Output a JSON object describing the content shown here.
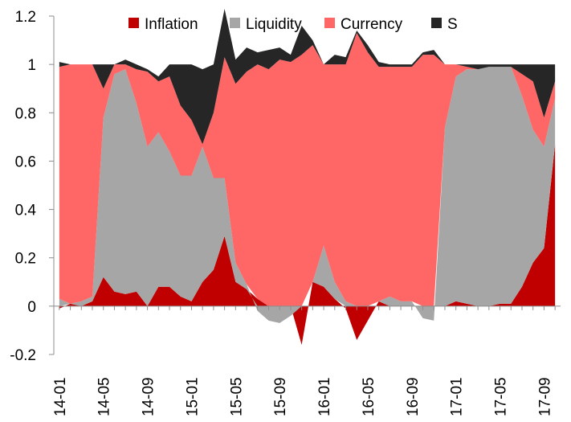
{
  "chart_data": {
    "type": "area",
    "stacked": true,
    "title": "",
    "xlabel": "",
    "ylabel": "",
    "ylim": [
      -0.2,
      1.2
    ],
    "yticks": [
      -0.2,
      0,
      0.2,
      0.4,
      0.6,
      0.8,
      1,
      1.2
    ],
    "ytick_labels": [
      "-0.2",
      "0",
      "0.2",
      "0.4",
      "0.6",
      "0.8",
      "1",
      "1.2"
    ],
    "xtick_labels": [
      "14-01",
      "14-05",
      "14-09",
      "15-01",
      "15-05",
      "15-09",
      "16-01",
      "16-05",
      "16-09",
      "17-01",
      "17-05",
      "17-09"
    ],
    "legend_position": "top",
    "grid": false,
    "x": [
      "14-01",
      "14-02",
      "14-03",
      "14-04",
      "14-05",
      "14-06",
      "14-07",
      "14-08",
      "14-09",
      "14-10",
      "14-11",
      "14-12",
      "15-01",
      "15-02",
      "15-03",
      "15-04",
      "15-05",
      "15-06",
      "15-07",
      "15-08",
      "15-09",
      "15-10",
      "15-11",
      "15-12",
      "16-01",
      "16-02",
      "16-03",
      "16-04",
      "16-05",
      "16-06",
      "16-07",
      "16-08",
      "16-09",
      "16-10",
      "16-11",
      "16-12",
      "17-01",
      "17-02",
      "17-03",
      "17-04",
      "17-05",
      "17-06",
      "17-07",
      "17-08",
      "17-09",
      "17-10"
    ],
    "series": [
      {
        "name": "Inflation",
        "color": "#c00000",
        "values": [
          -0.01,
          0.01,
          0.0,
          0.02,
          0.12,
          0.06,
          0.05,
          0.06,
          0.0,
          0.08,
          0.08,
          0.04,
          0.02,
          0.1,
          0.15,
          0.29,
          0.1,
          0.07,
          0.03,
          0.0,
          0.0,
          0.0,
          -0.16,
          0.1,
          0.08,
          0.03,
          -0.01,
          -0.14,
          -0.06,
          0.02,
          0.0,
          0.0,
          0.0,
          0.0,
          0.0,
          0.0,
          0.02,
          0.01,
          0.0,
          0.0,
          0.01,
          0.01,
          0.08,
          0.18,
          0.24,
          0.67
        ]
      },
      {
        "name": "Liquidity",
        "color": "#a6a6a6",
        "values": [
          0.03,
          0.0,
          0.02,
          0.02,
          0.66,
          0.9,
          0.93,
          0.78,
          0.66,
          0.64,
          0.56,
          0.5,
          0.52,
          0.56,
          0.38,
          0.24,
          0.08,
          0.02,
          -0.02,
          -0.06,
          -0.07,
          -0.04,
          0.0,
          0.0,
          0.17,
          0.07,
          0.02,
          0.0,
          0.0,
          0.0,
          0.04,
          0.02,
          0.02,
          -0.05,
          -0.06,
          0.74,
          0.93,
          0.97,
          0.98,
          0.99,
          0.98,
          0.98,
          0.79,
          0.55,
          0.42,
          0.19
        ]
      },
      {
        "name": "Currency",
        "color": "#ff6666",
        "values": [
          0.96,
          0.99,
          0.98,
          0.96,
          0.12,
          0.04,
          0.02,
          0.14,
          0.31,
          0.21,
          0.31,
          0.29,
          0.23,
          0.01,
          0.27,
          0.5,
          0.74,
          0.88,
          0.97,
          0.98,
          1.02,
          1.01,
          1.04,
          0.98,
          0.75,
          0.9,
          0.98,
          1.13,
          1.05,
          0.97,
          0.95,
          0.97,
          0.97,
          1.04,
          1.04,
          0.26,
          0.05,
          0.01,
          0.0,
          0.0,
          0.0,
          0.0,
          0.09,
          0.2,
          0.12,
          0.07
        ]
      },
      {
        "name": "S",
        "color": "#262626",
        "values": [
          0.02,
          0.0,
          0.0,
          0.0,
          0.1,
          0.0,
          0.02,
          0.02,
          0.01,
          0.02,
          0.05,
          0.17,
          0.23,
          0.31,
          0.2,
          0.2,
          0.1,
          0.1,
          0.05,
          0.08,
          0.05,
          0.03,
          0.12,
          0.02,
          0.0,
          0.04,
          0.03,
          0.01,
          0.03,
          0.02,
          0.01,
          0.01,
          0.01,
          0.01,
          0.02,
          0.0,
          0.0,
          0.01,
          0.02,
          0.01,
          0.01,
          0.01,
          0.04,
          0.07,
          0.22,
          0.07
        ]
      }
    ]
  }
}
